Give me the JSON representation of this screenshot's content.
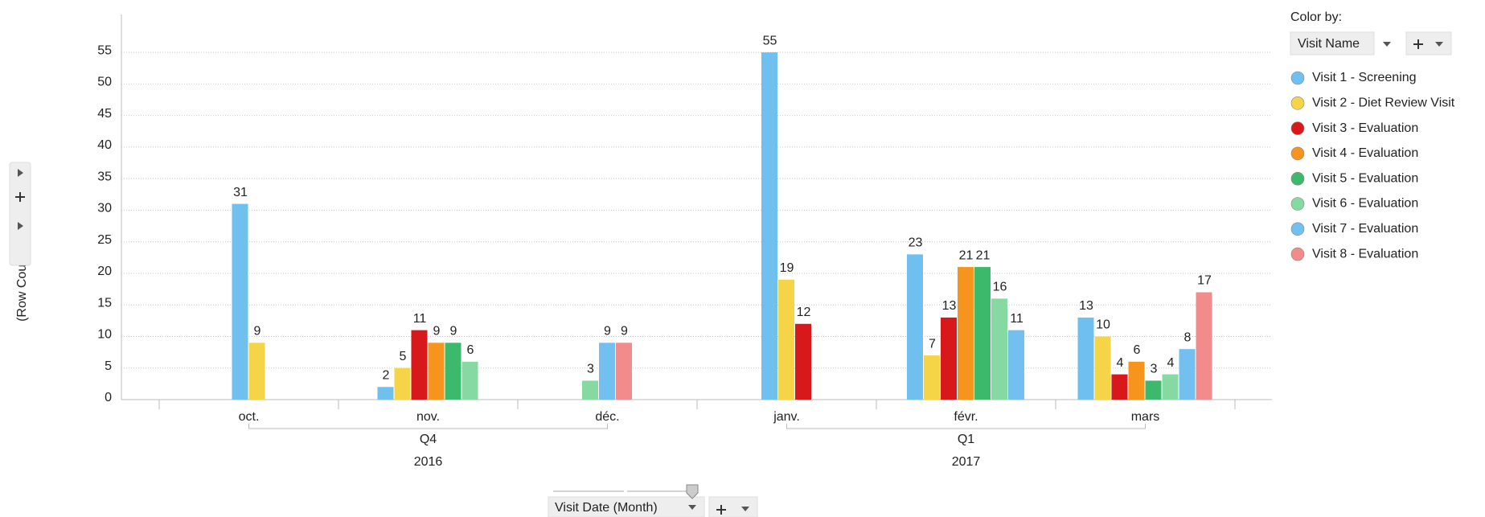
{
  "chart_data": {
    "type": "bar",
    "y_axis_label": "(Row Count)",
    "x_axis_label": "Visit Date (Month)",
    "legend_title": "Color by:",
    "color_by": "Visit Name",
    "categories": [
      "oct.",
      "nov.",
      "déc.",
      "janv.",
      "févr.",
      "mars"
    ],
    "quarters": [
      "Q4",
      "Q1"
    ],
    "years": [
      "2016",
      "2017"
    ],
    "ylim": [
      0,
      61
    ],
    "yticks": [
      0,
      5,
      10,
      15,
      20,
      25,
      30,
      35,
      40,
      45,
      50,
      55
    ],
    "grid": true,
    "legend": "right",
    "series": [
      {
        "name": "Visit 1 - Screening",
        "color": "#6fbfef",
        "values": [
          31,
          2,
          null,
          55,
          23,
          13
        ]
      },
      {
        "name": "Visit 2 - Diet Review Visit",
        "color": "#f5d547",
        "values": [
          9,
          5,
          null,
          19,
          7,
          10
        ]
      },
      {
        "name": "Visit 3 - Evaluation",
        "color": "#d7191c",
        "values": [
          null,
          11,
          null,
          12,
          13,
          4
        ]
      },
      {
        "name": "Visit 4 - Evaluation",
        "color": "#f7941d",
        "values": [
          null,
          9,
          null,
          null,
          21,
          6
        ]
      },
      {
        "name": "Visit 5 - Evaluation",
        "color": "#3cb96a",
        "values": [
          null,
          9,
          null,
          null,
          21,
          3
        ]
      },
      {
        "name": "Visit 6 - Evaluation",
        "color": "#86d9a0",
        "values": [
          null,
          6,
          3,
          null,
          16,
          4
        ]
      },
      {
        "name": "Visit 7 - Evaluation",
        "color": "#72bff0",
        "values": [
          null,
          null,
          9,
          null,
          11,
          8
        ]
      },
      {
        "name": "Visit 8 - Evaluation",
        "color": "#f28b8b",
        "values": [
          null,
          null,
          9,
          null,
          null,
          17
        ]
      }
    ]
  }
}
